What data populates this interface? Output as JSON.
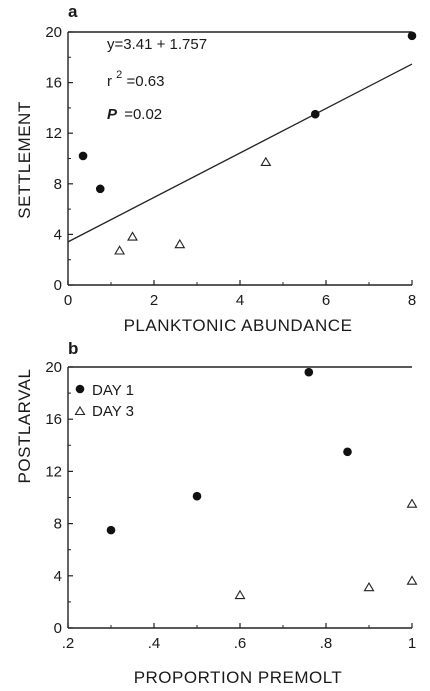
{
  "chart_data": [
    {
      "type": "scatter",
      "panel": "a",
      "xlabel": "PLANKTONIC ABUNDANCE",
      "ylabel": "SETTLEMENT",
      "xlim": [
        0,
        8
      ],
      "ylim": [
        0,
        20
      ],
      "xticks": [
        "0",
        "2",
        "4",
        "6",
        "8"
      ],
      "yticks": [
        "0",
        "4",
        "8",
        "12",
        "16",
        "20"
      ],
      "xtick_values": [
        0,
        2,
        4,
        6,
        8
      ],
      "ytick_values": [
        0,
        4,
        8,
        12,
        16,
        20
      ],
      "annotations": [
        "y=3.41 + 1.757",
        "r²=0.63",
        "P=0.02"
      ],
      "annotation_parts": {
        "eq": "y=3.41 + 1.757",
        "r_sym": "r",
        "r_exp": "2",
        "r_val": "=0.63",
        "p_sym": "P",
        "p_val": "=0.02"
      },
      "regression": {
        "intercept": 3.41,
        "slope": 1.757,
        "x_range": [
          0,
          8
        ]
      },
      "series": [
        {
          "marker": "filled-circle",
          "x": [
            0.35,
            0.75,
            5.75,
            8.0
          ],
          "y": [
            10.2,
            7.6,
            13.5,
            19.7
          ]
        },
        {
          "marker": "open-triangle",
          "x": [
            1.2,
            1.5,
            2.6,
            4.6
          ],
          "y": [
            2.7,
            3.8,
            3.2,
            9.7
          ]
        }
      ],
      "grid": false
    },
    {
      "type": "scatter",
      "panel": "b",
      "xlabel": "PROPORTION  PREMOLT",
      "ylabel": "POSTLARVAL",
      "xlim": [
        0.2,
        1.0
      ],
      "ylim": [
        0,
        20
      ],
      "xticks": [
        ".2",
        ".4",
        ".6",
        ".8",
        "1"
      ],
      "yticks": [
        "0",
        "4",
        "8",
        "12",
        "16",
        "20"
      ],
      "xtick_values": [
        0.2,
        0.4,
        0.6,
        0.8,
        1.0
      ],
      "ytick_values": [
        0,
        4,
        8,
        12,
        16,
        20
      ],
      "legend": "top-left",
      "series": [
        {
          "name": "DAY 1",
          "marker": "filled-circle",
          "x": [
            0.3,
            0.5,
            0.76,
            0.85
          ],
          "y": [
            7.5,
            10.1,
            19.6,
            13.5
          ]
        },
        {
          "name": "DAY 3",
          "marker": "open-triangle",
          "x": [
            0.6,
            0.9,
            1.0,
            1.0
          ],
          "y": [
            2.5,
            3.1,
            3.6,
            9.5
          ]
        }
      ],
      "grid": false
    }
  ]
}
